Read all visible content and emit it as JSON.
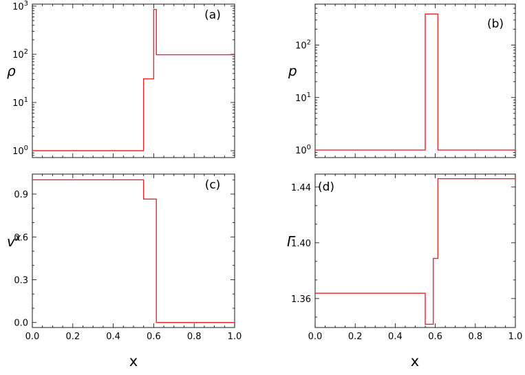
{
  "chart_data": [
    {
      "type": "line",
      "panel_label": "(a)",
      "xlabel": "",
      "ylabel": "ρ",
      "yscale": "log",
      "xlim": [
        0,
        1
      ],
      "ylim": [
        0.72,
        1100
      ],
      "x_ticks": [
        0,
        0.2,
        0.4,
        0.6,
        0.8,
        1.0
      ],
      "x_tick_labels": [
        "",
        "",
        "",
        "",
        "",
        ""
      ],
      "y_ticks": [
        1,
        10,
        100,
        1000
      ],
      "y_tick_labels": [
        {
          "base": "10",
          "exp": "0"
        },
        {
          "base": "10",
          "exp": "1"
        },
        {
          "base": "10",
          "exp": "2"
        },
        {
          "base": "10",
          "exp": "3"
        }
      ],
      "series": [
        {
          "color": "#e8262b",
          "step": true,
          "x": [
            0.0,
            0.55,
            0.6,
            0.613,
            1.0
          ],
          "y": [
            1,
            31,
            850,
            98,
            98
          ]
        }
      ]
    },
    {
      "type": "line",
      "panel_label": "(b)",
      "xlabel": "",
      "ylabel": "p",
      "yscale": "log",
      "xlim": [
        0,
        1
      ],
      "ylim": [
        0.72,
        600
      ],
      "x_ticks": [
        0,
        0.2,
        0.4,
        0.6,
        0.8,
        1.0
      ],
      "x_tick_labels": [
        "",
        "",
        "",
        "",
        "",
        ""
      ],
      "y_ticks": [
        1,
        10,
        100
      ],
      "y_tick_labels": [
        {
          "base": "10",
          "exp": "0"
        },
        {
          "base": "10",
          "exp": "1"
        },
        {
          "base": "10",
          "exp": "2"
        }
      ],
      "series": [
        {
          "color": "#e8262b",
          "step": true,
          "x": [
            0.0,
            0.55,
            0.613,
            1.0
          ],
          "y": [
            1,
            390,
            1,
            1
          ]
        }
      ]
    },
    {
      "type": "line",
      "panel_label": "(c)",
      "xlabel": "x",
      "ylabel": "v",
      "ylabel_superscript": "x",
      "yscale": "linear",
      "xlim": [
        0,
        1
      ],
      "ylim": [
        -0.035,
        1.04
      ],
      "x_ticks": [
        0,
        0.2,
        0.4,
        0.6,
        0.8,
        1.0
      ],
      "x_tick_labels": [
        "0.0",
        "0.2",
        "0.4",
        "0.6",
        "0.8",
        "1.0"
      ],
      "y_ticks": [
        0.0,
        0.3,
        0.6,
        0.9
      ],
      "y_tick_labels": [
        "0.0",
        "0.3",
        "0.6",
        "0.9"
      ],
      "series": [
        {
          "color": "#e8262b",
          "step": true,
          "x": [
            0.0,
            0.55,
            0.613,
            1.0
          ],
          "y": [
            1.0,
            0.865,
            0.0,
            0.0
          ]
        }
      ]
    },
    {
      "type": "line",
      "panel_label": "(d)",
      "xlabel": "x",
      "ylabel": "Γ",
      "yscale": "linear",
      "xlim": [
        0,
        1
      ],
      "ylim": [
        1.3392,
        1.4493
      ],
      "x_ticks": [
        0,
        0.2,
        0.4,
        0.6,
        0.8,
        1.0
      ],
      "x_tick_labels": [
        "0.0",
        "0.2",
        "0.4",
        "0.6",
        "0.8",
        "1.0"
      ],
      "y_ticks": [
        1.36,
        1.4,
        1.44
      ],
      "y_tick_labels": [
        "1.36",
        "1.40",
        "1.44"
      ],
      "series": [
        {
          "color": "#e8262b",
          "step": true,
          "x": [
            0.0,
            0.55,
            0.59,
            0.6,
            0.613,
            1.0
          ],
          "y": [
            1.3638,
            1.3415,
            1.3888,
            1.3888,
            1.446,
            1.446
          ]
        }
      ]
    }
  ]
}
